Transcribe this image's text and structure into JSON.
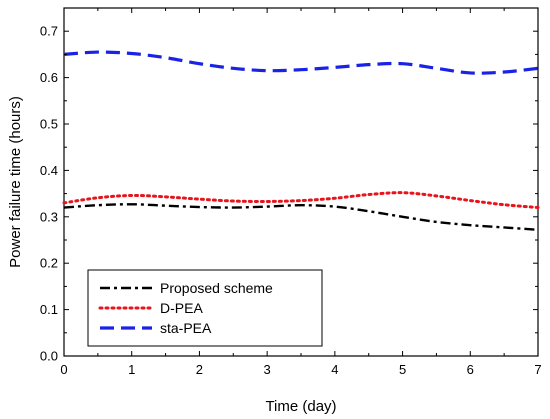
{
  "chart_data": {
    "type": "line",
    "title": "",
    "xlabel": "Time (day)",
    "ylabel": "Power failure time (hours)",
    "xlim": [
      0,
      7
    ],
    "ylim": [
      0,
      0.75
    ],
    "xticks": [
      0,
      1,
      2,
      3,
      4,
      5,
      6,
      7
    ],
    "yticks": [
      0.0,
      0.1,
      0.2,
      0.3,
      0.4,
      0.5,
      0.6,
      0.7
    ],
    "xtick_labels": [
      "0",
      "1",
      "2",
      "3",
      "4",
      "5",
      "6",
      "7"
    ],
    "ytick_labels": [
      "0.0",
      "0.1",
      "0.2",
      "0.3",
      "0.4",
      "0.5",
      "0.6",
      "0.7"
    ],
    "grid": false,
    "legend": "bottom-left",
    "series": [
      {
        "name": "Proposed scheme",
        "color": "#000000",
        "style": "dash-dot",
        "x": [
          0,
          0.5,
          1,
          1.5,
          2,
          2.5,
          3,
          3.5,
          4,
          4.5,
          5,
          5.5,
          6,
          6.5,
          7
        ],
        "y": [
          0.32,
          0.325,
          0.327,
          0.324,
          0.321,
          0.32,
          0.322,
          0.325,
          0.322,
          0.312,
          0.3,
          0.289,
          0.282,
          0.277,
          0.272
        ]
      },
      {
        "name": "D-PEA",
        "color": "#e8141c",
        "style": "dotted",
        "x": [
          0,
          0.5,
          1,
          1.5,
          2,
          2.5,
          3,
          3.5,
          4,
          4.5,
          5,
          5.5,
          6,
          6.5,
          7
        ],
        "y": [
          0.33,
          0.341,
          0.346,
          0.343,
          0.338,
          0.334,
          0.333,
          0.335,
          0.34,
          0.348,
          0.352,
          0.345,
          0.335,
          0.326,
          0.32
        ]
      },
      {
        "name": "sta-PEA",
        "color": "#1a22e6",
        "style": "dashed",
        "x": [
          0,
          0.5,
          1,
          1.5,
          2,
          2.5,
          3,
          3.5,
          4,
          4.5,
          5,
          5.5,
          6,
          6.5,
          7
        ],
        "y": [
          0.65,
          0.655,
          0.652,
          0.643,
          0.63,
          0.62,
          0.615,
          0.617,
          0.622,
          0.628,
          0.63,
          0.62,
          0.61,
          0.612,
          0.62
        ]
      }
    ]
  }
}
